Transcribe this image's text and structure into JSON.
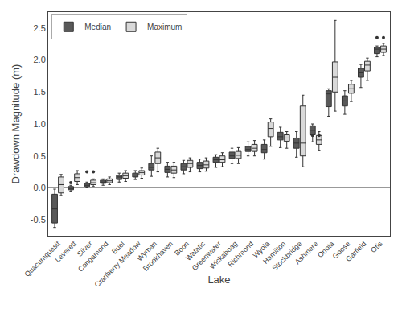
{
  "chart_data": {
    "type": "box",
    "xlabel": "Lake",
    "ylabel": "Drawdown Magnitude (m)",
    "categories": [
      "Quacumquasit",
      "Leverett",
      "Silver",
      "Congamond",
      "Buel",
      "Cranberry Meadow",
      "Wyman",
      "Brookhaven",
      "Boon",
      "Watatic",
      "Greenwater",
      "Wickaboag",
      "Richmond",
      "Wyola",
      "Hamilton",
      "Stockbridge",
      "Ashmere",
      "Onota",
      "Goose",
      "Garfield",
      "Otis"
    ],
    "series": [
      {
        "name": "Median",
        "color": "#595959",
        "q1": [
          -0.55,
          -0.03,
          0.02,
          0.07,
          0.13,
          0.17,
          0.28,
          0.24,
          0.28,
          0.3,
          0.4,
          0.46,
          0.57,
          0.55,
          0.75,
          0.62,
          0.83,
          1.27,
          1.28,
          1.73,
          2.1
        ],
        "med": [
          -0.33,
          -0.01,
          0.04,
          0.09,
          0.17,
          0.2,
          0.32,
          0.29,
          0.33,
          0.35,
          0.44,
          0.5,
          0.6,
          0.6,
          0.8,
          0.7,
          0.9,
          1.47,
          1.36,
          1.8,
          2.17
        ],
        "q3": [
          -0.1,
          0.02,
          0.07,
          0.12,
          0.2,
          0.23,
          0.38,
          0.34,
          0.38,
          0.4,
          0.48,
          0.56,
          0.65,
          0.68,
          0.87,
          0.78,
          0.97,
          1.52,
          1.44,
          1.87,
          2.2
        ],
        "whislo": [
          -0.62,
          -0.05,
          0.0,
          0.04,
          0.09,
          0.13,
          0.18,
          0.17,
          0.22,
          0.25,
          0.32,
          0.38,
          0.5,
          0.45,
          0.63,
          0.48,
          0.72,
          1.12,
          1.15,
          1.57,
          2.05
        ],
        "whishi": [
          -0.02,
          0.04,
          0.09,
          0.14,
          0.23,
          0.27,
          0.5,
          0.4,
          0.43,
          0.45,
          0.52,
          0.62,
          0.72,
          0.75,
          0.95,
          0.88,
          1.0,
          1.55,
          1.52,
          1.93,
          2.22
        ],
        "fliers": [
          [],
          [
            0.08
          ],
          [
            0.25
          ],
          [],
          [],
          [],
          [],
          [],
          [],
          [],
          [],
          [],
          [],
          [],
          [],
          [],
          [
            0.82
          ],
          [],
          [],
          [],
          [
            2.35
          ]
        ]
      },
      {
        "name": "Maximum",
        "color": "#d9d9d9",
        "q1": [
          -0.08,
          0.1,
          0.05,
          0.08,
          0.15,
          0.2,
          0.38,
          0.23,
          0.32,
          0.31,
          0.4,
          0.46,
          0.57,
          0.8,
          0.73,
          0.5,
          0.68,
          1.5,
          1.48,
          1.83,
          2.12
        ],
        "med": [
          0.05,
          0.16,
          0.08,
          0.11,
          0.19,
          0.24,
          0.47,
          0.28,
          0.38,
          0.36,
          0.44,
          0.51,
          0.62,
          0.93,
          0.78,
          0.7,
          0.75,
          1.73,
          1.55,
          1.92,
          2.17
        ],
        "q3": [
          0.17,
          0.22,
          0.12,
          0.14,
          0.23,
          0.27,
          0.56,
          0.34,
          0.43,
          0.42,
          0.5,
          0.57,
          0.68,
          1.03,
          0.83,
          1.28,
          0.82,
          1.97,
          1.62,
          1.98,
          2.22
        ],
        "whislo": [
          -0.12,
          0.05,
          0.02,
          0.05,
          0.1,
          0.15,
          0.25,
          0.16,
          0.25,
          0.26,
          0.33,
          0.38,
          0.5,
          0.65,
          0.62,
          0.33,
          0.58,
          1.2,
          1.35,
          1.68,
          2.07
        ],
        "whishi": [
          0.21,
          0.27,
          0.14,
          0.17,
          0.27,
          0.31,
          0.62,
          0.4,
          0.47,
          0.47,
          0.55,
          0.63,
          0.74,
          1.08,
          0.88,
          1.45,
          0.88,
          2.62,
          1.68,
          2.03,
          2.26
        ],
        "fliers": [
          [],
          [],
          [
            0.25
          ],
          [],
          [],
          [],
          [],
          [],
          [],
          [],
          [],
          [],
          [],
          [],
          [],
          [],
          [
            0.82
          ],
          [],
          [],
          [],
          [
            2.35
          ]
        ]
      }
    ],
    "ylim": [
      -0.75,
      2.75
    ],
    "yticks": [
      -0.5,
      {
        "value": 0.0,
        "label": "0.0"
      },
      0.5,
      {
        "value": 1.0,
        "label": "1.0"
      },
      1.5,
      {
        "value": 2.0,
        "label": "2.0"
      },
      2.5
    ],
    "grid": false,
    "legend": "upper left"
  }
}
